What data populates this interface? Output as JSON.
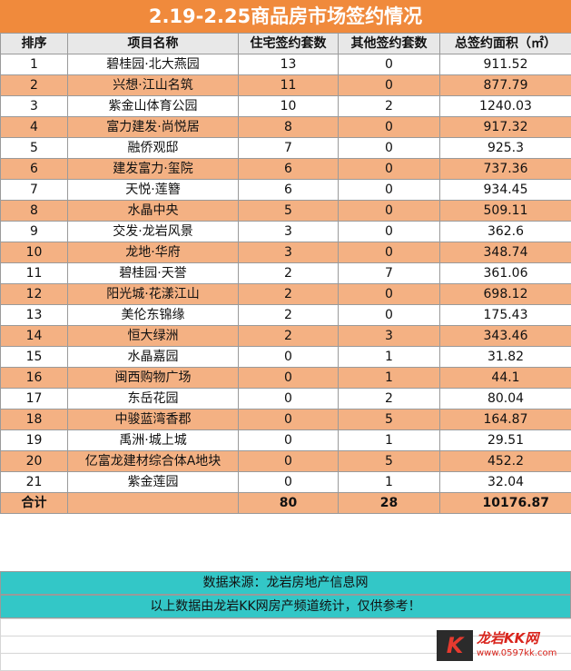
{
  "title": "2.19-2.25商品房市场签约情况",
  "columns": [
    "排序",
    "项目名称",
    "住宅签约套数",
    "其他签约套数",
    "总签约面积（㎡）"
  ],
  "rows": [
    {
      "rank": "1",
      "name": "碧桂园·北大燕园",
      "residential": "13",
      "other": "0",
      "area": "911.52"
    },
    {
      "rank": "2",
      "name": "兴想·江山名筑",
      "residential": "11",
      "other": "0",
      "area": "877.79"
    },
    {
      "rank": "3",
      "name": "紫金山体育公园",
      "residential": "10",
      "other": "2",
      "area": "1240.03"
    },
    {
      "rank": "4",
      "name": "富力建发·尚悦居",
      "residential": "8",
      "other": "0",
      "area": "917.32"
    },
    {
      "rank": "5",
      "name": "融侨观邸",
      "residential": "7",
      "other": "0",
      "area": "925.3"
    },
    {
      "rank": "6",
      "name": "建发富力·玺院",
      "residential": "6",
      "other": "0",
      "area": "737.36"
    },
    {
      "rank": "7",
      "name": "天悦·莲簪",
      "residential": "6",
      "other": "0",
      "area": "934.45"
    },
    {
      "rank": "8",
      "name": "水晶中央",
      "residential": "5",
      "other": "0",
      "area": "509.11"
    },
    {
      "rank": "9",
      "name": "交发·龙岩风景",
      "residential": "3",
      "other": "0",
      "area": "362.6"
    },
    {
      "rank": "10",
      "name": "龙地·华府",
      "residential": "3",
      "other": "0",
      "area": "348.74"
    },
    {
      "rank": "11",
      "name": "碧桂园·天誉",
      "residential": "2",
      "other": "7",
      "area": "361.06"
    },
    {
      "rank": "12",
      "name": "阳光城·花漾江山",
      "residential": "2",
      "other": "0",
      "area": "698.12"
    },
    {
      "rank": "13",
      "name": "美伦东锦缘",
      "residential": "2",
      "other": "0",
      "area": "175.43"
    },
    {
      "rank": "14",
      "name": "恒大绿洲",
      "residential": "2",
      "other": "3",
      "area": "343.46"
    },
    {
      "rank": "15",
      "name": "水晶嘉园",
      "residential": "0",
      "other": "1",
      "area": "31.82"
    },
    {
      "rank": "16",
      "name": "闽西购物广场",
      "residential": "0",
      "other": "1",
      "area": "44.1"
    },
    {
      "rank": "17",
      "name": "东岳花园",
      "residential": "0",
      "other": "2",
      "area": "80.04"
    },
    {
      "rank": "18",
      "name": "中骏蓝湾香郡",
      "residential": "0",
      "other": "5",
      "area": "164.87"
    },
    {
      "rank": "19",
      "name": "禹洲·城上城",
      "residential": "0",
      "other": "1",
      "area": "29.51"
    },
    {
      "rank": "20",
      "name": "亿富龙建材综合体A地块",
      "residential": "0",
      "other": "5",
      "area": "452.2"
    },
    {
      "rank": "21",
      "name": "紫金莲园",
      "residential": "0",
      "other": "1",
      "area": "32.04"
    }
  ],
  "total": {
    "label": "合计",
    "residential": "80",
    "other": "28",
    "area": "10176.87"
  },
  "footer": {
    "source": "数据来源：龙岩房地产信息网",
    "note": "以上数据由龙岩KK网房产频道统计，仅供参考！"
  },
  "logo": {
    "mark": "K",
    "text": "龙岩KK网",
    "url": "www.0597kk.com"
  },
  "colors": {
    "title_bg": "#f08a3c",
    "stripe": "#f4b183",
    "footer_bg": "#33c7c7"
  }
}
